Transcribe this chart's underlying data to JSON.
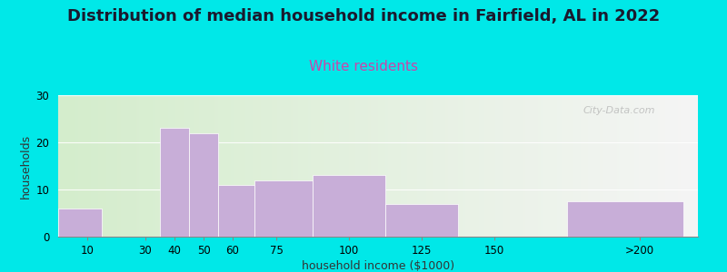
{
  "title": "Distribution of median household income in Fairfield, AL in 2022",
  "subtitle": "White residents",
  "xlabel": "household income ($1000)",
  "ylabel": "households",
  "bar_color": "#c8aed8",
  "background_color": "#00e8e8",
  "plot_bg_left": "#d4edcc",
  "plot_bg_right": "#f5f5f5",
  "ylim": [
    0,
    30
  ],
  "yticks": [
    0,
    10,
    20,
    30
  ],
  "title_fontsize": 13,
  "subtitle_fontsize": 11,
  "subtitle_color": "#cc44aa",
  "axis_label_fontsize": 9,
  "tick_fontsize": 8.5,
  "watermark": "City-Data.com",
  "xtick_positions": [
    10,
    30,
    40,
    50,
    60,
    75,
    100,
    125,
    150,
    200
  ],
  "xtick_labels": [
    "10",
    "30",
    "40",
    "50",
    "60",
    "75",
    "100",
    "125",
    "150",
    ">200"
  ],
  "bar_lefts": [
    0,
    20,
    35,
    45,
    55,
    67.5,
    87.5,
    112.5,
    137.5,
    175
  ],
  "bar_widths": [
    15,
    0,
    10,
    10,
    12.5,
    20,
    25,
    25,
    0,
    40
  ],
  "bar_heights": [
    6,
    0,
    23,
    22,
    11,
    12,
    13,
    7,
    0,
    7.5
  ],
  "xlim": [
    0,
    220
  ]
}
